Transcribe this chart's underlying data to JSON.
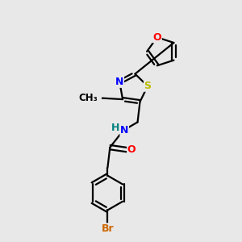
{
  "bg_color": "#e8e8e8",
  "bond_color": "#000000",
  "bond_width": 1.6,
  "atom_colors": {
    "O": "#ff0000",
    "N": "#0000ff",
    "S": "#bbbb00",
    "Br": "#cc6600",
    "C": "#000000",
    "H": "#008080"
  },
  "fig_size": [
    3.0,
    3.0
  ],
  "dpi": 100
}
